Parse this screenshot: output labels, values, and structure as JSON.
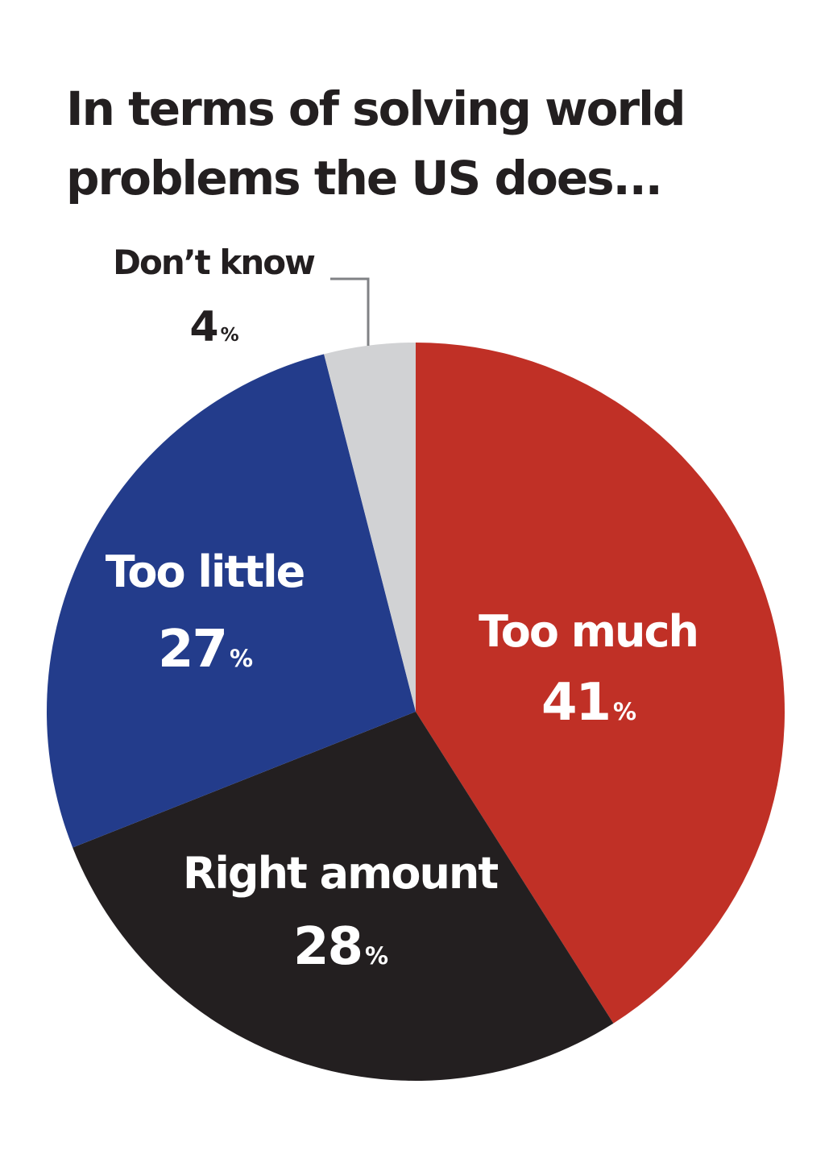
{
  "chart_data": {
    "type": "pie",
    "title": "In terms of solving world problems the US does...",
    "slices": [
      {
        "label": "Too much",
        "value": 41,
        "value_text": "41",
        "unit": "%",
        "color": "#c03026",
        "label_color": "#ffffff"
      },
      {
        "label": "Right amount",
        "value": 28,
        "value_text": "28",
        "unit": "%",
        "color": "#231f20",
        "label_color": "#ffffff"
      },
      {
        "label": "Too little",
        "value": 27,
        "value_text": "27",
        "unit": "%",
        "color": "#233c8b",
        "label_color": "#ffffff"
      },
      {
        "label": "Don’t know",
        "value": 4,
        "value_text": "4",
        "unit": "%",
        "color": "#d1d2d4",
        "label_color": "#231f20"
      }
    ],
    "start": "top",
    "direction": "clockwise",
    "leader_line_color": "#808285"
  }
}
